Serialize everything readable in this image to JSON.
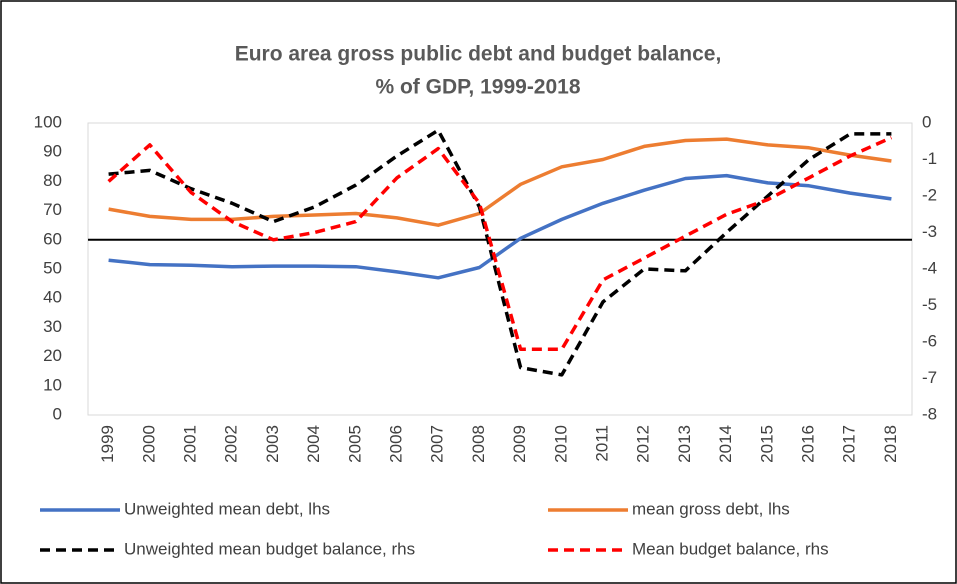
{
  "chart_data": {
    "type": "line",
    "title": "Euro area gross  public debt and budget balance,",
    "subtitle": "% of GDP, 1999-2018",
    "categories": [
      "1999",
      "2000",
      "2001",
      "2002",
      "2003",
      "2004",
      "2005",
      "2006",
      "2007",
      "2008",
      "2009",
      "2010",
      "2011",
      "2012",
      "2013",
      "2014",
      "2015",
      "2016",
      "2017",
      "2018"
    ],
    "series": [
      {
        "name": "Unweighted mean debt, lhs",
        "color": "#4472c4",
        "dashed": false,
        "values": [
          53,
          51.5,
          51.3,
          50.8,
          51,
          51,
          50.8,
          49,
          47,
          50.5,
          60.5,
          67,
          72.5,
          77,
          81,
          82,
          79.5,
          78.5,
          76,
          74
        ]
      },
      {
        "name": "mean gross debt, lhs",
        "color": "#ed7d31",
        "dashed": false,
        "values": [
          70.5,
          68,
          67,
          67,
          68,
          68.5,
          69,
          67.5,
          65,
          69,
          79,
          85,
          87.5,
          92,
          94,
          94.5,
          92.5,
          91.5,
          89,
          87
        ]
      },
      {
        "name": "Unweighted mean budget balance, rhs",
        "color": "#000000",
        "dashed": true,
        "axis": "y2",
        "values": [
          -1.4,
          -1.3,
          -1.8,
          -2.2,
          -2.7,
          -2.3,
          -1.7,
          -0.9,
          -0.2,
          -2.3,
          -6.7,
          -6.9,
          -4.9,
          -4.0,
          -4.05,
          -3.0,
          -2.0,
          -1.0,
          -0.3,
          -0.3
        ]
      },
      {
        "name": "Mean budget balance, rhs",
        "color": "#ff0000",
        "dashed": true,
        "axis": "y2",
        "values": [
          -1.6,
          -0.6,
          -1.9,
          -2.7,
          -3.2,
          -3.0,
          -2.7,
          -1.5,
          -0.7,
          -2.2,
          -6.2,
          -6.2,
          -4.3,
          -3.7,
          -3.1,
          -2.5,
          -2.1,
          -1.5,
          -0.9,
          -0.4
        ]
      }
    ],
    "ylim": [
      0,
      100
    ],
    "yticks": [
      0,
      10,
      20,
      30,
      40,
      50,
      60,
      70,
      80,
      90,
      100
    ],
    "y2lim": [
      -8,
      0
    ],
    "y2ticks": [
      -8,
      -7,
      -6,
      -5,
      -4,
      -3,
      -2,
      -1,
      0
    ],
    "hline": 60
  }
}
